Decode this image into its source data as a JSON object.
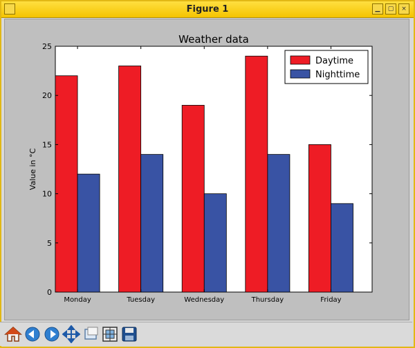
{
  "window": {
    "title": "Figure 1"
  },
  "toolbar": {
    "buttons": [
      {
        "name": "home-icon"
      },
      {
        "name": "back-icon"
      },
      {
        "name": "forward-icon"
      },
      {
        "name": "pan-icon"
      },
      {
        "name": "zoom-icon"
      },
      {
        "name": "configure-subplots-icon"
      },
      {
        "name": "save-icon"
      }
    ]
  },
  "chart_data": {
    "type": "bar",
    "title": "Weather data",
    "xlabel": "",
    "ylabel": "Value in °C",
    "categories": [
      "Monday",
      "Tuesday",
      "Wednesday",
      "Thursday",
      "Friday"
    ],
    "series": [
      {
        "name": "Daytime",
        "values": [
          22,
          23,
          19,
          24,
          15
        ],
        "color": "#ee1c25"
      },
      {
        "name": "Nighttime",
        "values": [
          12,
          14,
          10,
          14,
          9
        ],
        "color": "#3953a4"
      }
    ],
    "ylim": [
      0,
      25
    ],
    "yticks": [
      0,
      5,
      10,
      15,
      20,
      25
    ],
    "legend": "top-right",
    "grid": false
  }
}
